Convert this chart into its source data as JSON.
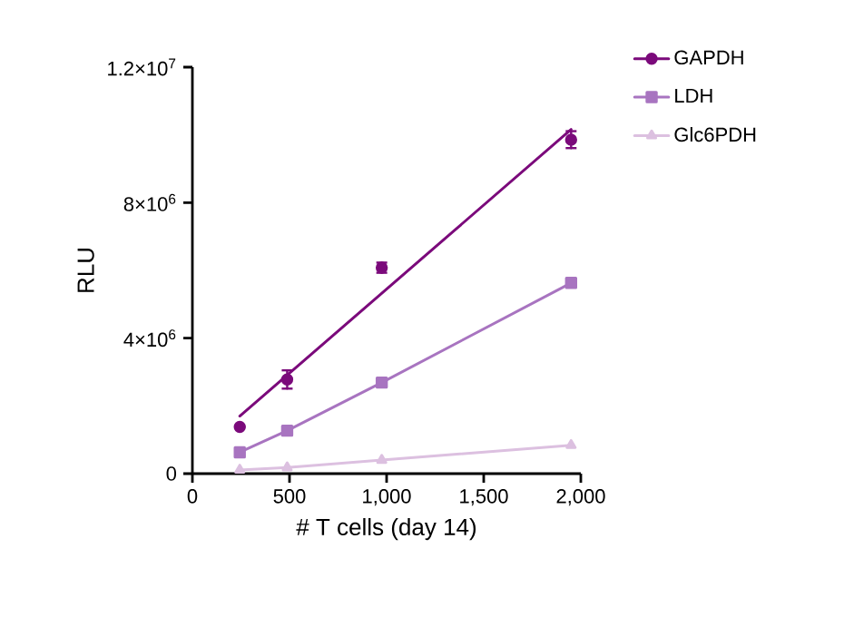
{
  "chart_data": {
    "type": "line",
    "xlabel": "# T cells (day 14)",
    "ylabel": "RLU",
    "xlim": [
      0,
      2000
    ],
    "ylim": [
      0,
      12000000
    ],
    "xticks": [
      0,
      500,
      {
        "value": 1000,
        "label": "1,000"
      },
      {
        "value": 1500,
        "label": "1,500"
      },
      {
        "value": 2000,
        "label": "2,000"
      }
    ],
    "yticks": [
      0,
      {
        "value": 4000000,
        "label": "4×10$^{6}$"
      },
      {
        "value": 8000000,
        "label": "8×10$^{6}$"
      },
      {
        "value": 12000000,
        "label": "1.2×10$^{7}$"
      }
    ],
    "legend": "top right",
    "x": [
      244,
      488,
      975,
      1950
    ],
    "series": [
      {
        "name": "GAPDH",
        "type": "scatter",
        "color": "#7b0a7b",
        "marker": "circle",
        "values": [
          1380000,
          2780000,
          6080000,
          9860000
        ],
        "errors": [
          null,
          270000,
          150000,
          250000
        ]
      },
      {
        "color": "#7b0a7b",
        "marker": "none",
        "x": [
          244,
          1950
        ],
        "values": [
          1700000,
          10160000
        ]
      },
      {
        "name": "LDH",
        "color": "#a874c0",
        "marker": "square",
        "values": [
          630000,
          1270000,
          2690000,
          5630000
        ]
      },
      {
        "name": "Glc6PDH",
        "color": "#dcc0e0",
        "marker": "triangle",
        "values": [
          110000,
          180000,
          400000,
          840000
        ]
      }
    ]
  }
}
